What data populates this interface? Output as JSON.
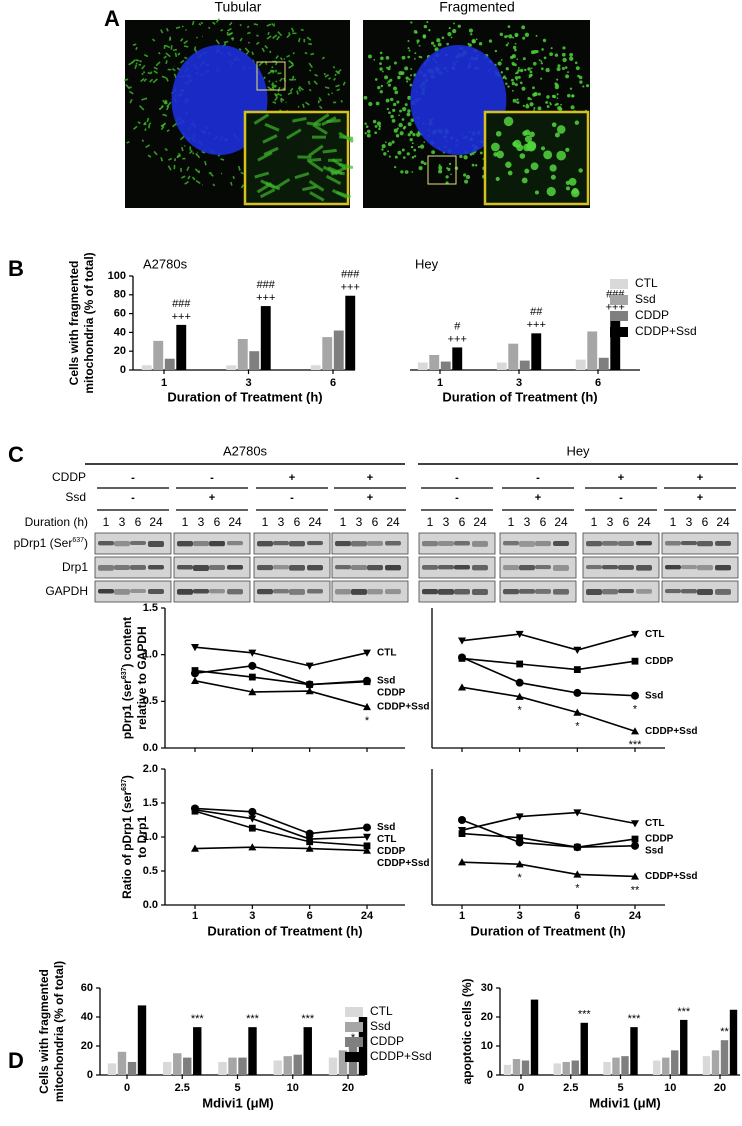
{
  "panel_labels": [
    "A",
    "B",
    "C",
    "D"
  ],
  "panel_a": {
    "images": [
      {
        "title": "Tubular"
      },
      {
        "title": "Fragmented"
      }
    ]
  },
  "panel_c": {
    "cell_lines": [
      "A2780s",
      "Hey"
    ],
    "conditions": [
      {
        "name": "CDDP",
        "signs": [
          "-",
          "-",
          "+",
          "+"
        ]
      },
      {
        "name": "Ssd",
        "signs": [
          "-",
          "+",
          "-",
          "+"
        ]
      }
    ],
    "duration": {
      "name": "Duration (h)",
      "times": [
        "1",
        "3",
        "6",
        "24"
      ]
    },
    "blots": [
      [
        "pDrp1 (Ser",
        "637",
        ")"
      ],
      [
        "Drp1"
      ],
      [
        "GAPDH"
      ]
    ]
  },
  "chart_data": [
    {
      "type": "bar",
      "subtitle": "A2780s",
      "ylabel": [
        [
          "Cells with fragmented"
        ],
        [
          "mitochondria (% of total)"
        ]
      ],
      "xlabel": "Duration of Treatment (h)",
      "categories": [
        "1",
        "3",
        "6"
      ],
      "series": [
        {
          "name": "CTL",
          "color": "#d9d9d9",
          "values": [
            5,
            5,
            5
          ]
        },
        {
          "name": "Ssd",
          "color": "#a6a6a6",
          "values": [
            31,
            33,
            35
          ]
        },
        {
          "name": "CDDP",
          "color": "#7f7f7f",
          "values": [
            12,
            20,
            42
          ]
        },
        {
          "name": "CDDP+Ssd",
          "color": "#000000",
          "values": [
            48,
            68,
            79
          ]
        }
      ],
      "ylim": [
        0,
        100
      ],
      "yticks": [
        0,
        20,
        40,
        60,
        80,
        100
      ],
      "annotations": [
        {
          "x": "1",
          "series": "CDDP+Ssd",
          "text": "###"
        },
        {
          "x": "1",
          "series": "CDDP+Ssd",
          "text": "+++"
        },
        {
          "x": "3",
          "series": "CDDP+Ssd",
          "text": "###"
        },
        {
          "x": "3",
          "series": "CDDP+Ssd",
          "text": "+++"
        },
        {
          "x": "6",
          "series": "CDDP+Ssd",
          "text": "###"
        },
        {
          "x": "6",
          "series": "CDDP+Ssd",
          "text": "+++"
        }
      ]
    },
    {
      "type": "bar",
      "subtitle": "Hey",
      "xlabel": "Duration of Treatment (h)",
      "categories": [
        "1",
        "3",
        "6"
      ],
      "series": [
        {
          "name": "CTL",
          "color": "#d9d9d9",
          "values": [
            8,
            8,
            11
          ]
        },
        {
          "name": "Ssd",
          "color": "#a6a6a6",
          "values": [
            16,
            28,
            41
          ]
        },
        {
          "name": "CDDP",
          "color": "#7f7f7f",
          "values": [
            9,
            10,
            13
          ]
        },
        {
          "name": "CDDP+Ssd",
          "color": "#000000",
          "values": [
            24,
            39,
            58
          ]
        }
      ],
      "ylim": [
        0,
        100
      ],
      "legend": "right",
      "annotations": [
        {
          "x": "1",
          "series": "CDDP+Ssd",
          "text": "#"
        },
        {
          "x": "1",
          "series": "CDDP+Ssd",
          "text": "+++"
        },
        {
          "x": "3",
          "series": "CDDP+Ssd",
          "text": "##"
        },
        {
          "x": "3",
          "series": "CDDP+Ssd",
          "text": "+++"
        },
        {
          "x": "6",
          "series": "CDDP+Ssd",
          "text": "###"
        },
        {
          "x": "6",
          "series": "CDDP+Ssd",
          "text": "+++"
        }
      ]
    },
    {
      "type": "line",
      "ylabel": [
        [
          "pDrp1 (ser",
          "637",
          ") content"
        ],
        [
          "relative to GAPDH"
        ]
      ],
      "series": [
        {
          "name": "CTL",
          "marker": "v",
          "color": "#000000",
          "values": [
            1.08,
            1.02,
            0.88,
            1.02
          ]
        },
        {
          "name": "Ssd",
          "marker": "o",
          "color": "#000000",
          "values": [
            0.8,
            0.88,
            0.68,
            0.72
          ]
        },
        {
          "name": "CDDP",
          "marker": "s",
          "color": "#000000",
          "values": [
            0.83,
            0.76,
            0.68,
            0.71
          ]
        },
        {
          "name": "CDDP+Ssd",
          "marker": "^",
          "color": "#000000",
          "values": [
            0.72,
            0.6,
            0.61,
            0.44
          ]
        }
      ],
      "ylim": [
        0,
        1.5
      ],
      "yticks": [
        {
          "value": 0,
          "label": "0.0"
        },
        0.5,
        {
          "value": 1,
          "label": "1.0"
        },
        1.5
      ],
      "annotations": [
        {
          "x": 3,
          "series": "CDDP+Ssd",
          "text": "*"
        }
      ]
    },
    {
      "type": "line",
      "series": [
        {
          "name": "CTL",
          "marker": "v",
          "color": "#000000",
          "values": [
            1.15,
            1.22,
            1.05,
            1.22
          ]
        },
        {
          "name": "CDDP",
          "marker": "s",
          "color": "#000000",
          "values": [
            0.96,
            0.9,
            0.84,
            0.93
          ]
        },
        {
          "name": "Ssd",
          "marker": "o",
          "color": "#000000",
          "values": [
            0.97,
            0.7,
            0.59,
            0.56
          ]
        },
        {
          "name": "CDDP+Ssd",
          "marker": "^",
          "color": "#000000",
          "values": [
            0.65,
            0.55,
            0.38,
            0.18
          ]
        }
      ],
      "ylim": [
        0,
        1.5
      ],
      "annotations": [
        {
          "x": 1,
          "series": "CDDP+Ssd",
          "text": "*"
        },
        {
          "x": 2,
          "series": "CDDP+Ssd",
          "text": "*"
        },
        {
          "x": 3,
          "series": "Ssd",
          "text": "*"
        },
        {
          "x": 3,
          "series": "CDDP+Ssd",
          "text": "***"
        }
      ]
    },
    {
      "type": "line",
      "ylabel": [
        [
          "Ratio of pDrp1 (ser",
          "637",
          ")"
        ],
        [
          "to Drp1"
        ]
      ],
      "xlabel": "Duration of Treatment (h)",
      "categories": [
        "1",
        "3",
        "6",
        "24"
      ],
      "series": [
        {
          "name": "Ssd",
          "marker": "o",
          "color": "#000000",
          "values": [
            1.42,
            1.37,
            1.05,
            1.14
          ]
        },
        {
          "name": "CTL",
          "marker": "v",
          "color": "#000000",
          "values": [
            1.4,
            1.27,
            0.97,
            1.0
          ]
        },
        {
          "name": "CDDP",
          "marker": "s",
          "color": "#000000",
          "values": [
            1.38,
            1.13,
            0.93,
            0.87
          ]
        },
        {
          "name": "CDDP+Ssd",
          "marker": "^",
          "color": "#000000",
          "values": [
            0.83,
            0.85,
            0.83,
            0.8
          ]
        }
      ],
      "ylim": [
        0,
        2
      ],
      "yticks": [
        {
          "value": 0,
          "label": "0.0"
        },
        0.5,
        {
          "value": 1,
          "label": "1.0"
        },
        1.5,
        {
          "value": 2,
          "label": "2.0"
        }
      ]
    },
    {
      "type": "line",
      "xlabel": "Duration of Treatment (h)",
      "categories": [
        "1",
        "3",
        "6",
        "24"
      ],
      "series": [
        {
          "name": "CTL",
          "marker": "v",
          "color": "#000000",
          "values": [
            1.1,
            1.3,
            1.36,
            1.2
          ]
        },
        {
          "name": "CDDP",
          "marker": "s",
          "color": "#000000",
          "values": [
            1.05,
            0.99,
            0.85,
            0.97
          ]
        },
        {
          "name": "Ssd",
          "marker": "o",
          "color": "#000000",
          "values": [
            1.25,
            0.92,
            0.85,
            0.87
          ]
        },
        {
          "name": "CDDP+Ssd",
          "marker": "^",
          "color": "#000000",
          "values": [
            0.63,
            0.6,
            0.45,
            0.42
          ]
        }
      ],
      "ylim": [
        0,
        2
      ],
      "annotations": [
        {
          "x": 1,
          "series": "CDDP+Ssd",
          "text": "*"
        },
        {
          "x": 2,
          "series": "CDDP+Ssd",
          "text": "*"
        },
        {
          "x": 3,
          "series": "CDDP+Ssd",
          "text": "**"
        }
      ]
    },
    {
      "type": "bar",
      "ylabel": [
        [
          "Cells with fragmented"
        ],
        [
          "mitochondria (% of total)"
        ]
      ],
      "xlabel": "Mdivi1 (μM)",
      "categories": [
        "0",
        "2.5",
        "5",
        "10",
        "20"
      ],
      "series": [
        {
          "name": "CTL",
          "color": "#d9d9d9",
          "values": [
            8,
            9,
            9,
            10,
            12
          ]
        },
        {
          "name": "Ssd",
          "color": "#a6a6a6",
          "values": [
            16,
            15,
            12,
            13,
            17
          ]
        },
        {
          "name": "CDDP",
          "color": "#7f7f7f",
          "values": [
            9,
            12,
            12,
            14,
            20
          ]
        },
        {
          "name": "CDDP+Ssd",
          "color": "#000000",
          "values": [
            48,
            33,
            33,
            33,
            40
          ]
        }
      ],
      "ylim": [
        0,
        60
      ],
      "yticks": [
        0,
        20,
        40,
        60
      ],
      "legend": "right",
      "annotations": [
        {
          "x": "2.5",
          "series": "CDDP+Ssd",
          "text": "***"
        },
        {
          "x": "5",
          "series": "CDDP+Ssd",
          "text": "***"
        },
        {
          "x": "10",
          "series": "CDDP+Ssd",
          "text": "***"
        },
        {
          "x": "20",
          "series": "CDDP",
          "text": "*"
        }
      ]
    },
    {
      "type": "bar",
      "ylabel": [
        [
          "apoptotic cells (%)"
        ]
      ],
      "xlabel": "Mdivi1 (μM)",
      "categories": [
        "0",
        "2.5",
        "5",
        "10",
        "20"
      ],
      "series": [
        {
          "name": "CTL",
          "color": "#d9d9d9",
          "values": [
            3.5,
            4,
            4.5,
            5,
            6.5
          ]
        },
        {
          "name": "Ssd",
          "color": "#a6a6a6",
          "values": [
            5.5,
            4.5,
            6,
            6,
            8.5
          ]
        },
        {
          "name": "CDDP",
          "color": "#7f7f7f",
          "values": [
            5,
            5,
            6.5,
            8.5,
            12
          ]
        },
        {
          "name": "CDDP+Ssd",
          "color": "#000000",
          "values": [
            26,
            18,
            16.5,
            19,
            22.5
          ]
        }
      ],
      "ylim": [
        0,
        30
      ],
      "yticks": [
        0,
        10,
        20,
        30
      ],
      "annotations": [
        {
          "x": "2.5",
          "series": "CDDP+Ssd",
          "text": "***"
        },
        {
          "x": "5",
          "series": "CDDP+Ssd",
          "text": "***"
        },
        {
          "x": "10",
          "series": "CDDP+Ssd",
          "text": "***"
        },
        {
          "x": "20",
          "series": "CDDP",
          "text": "**"
        }
      ]
    }
  ]
}
